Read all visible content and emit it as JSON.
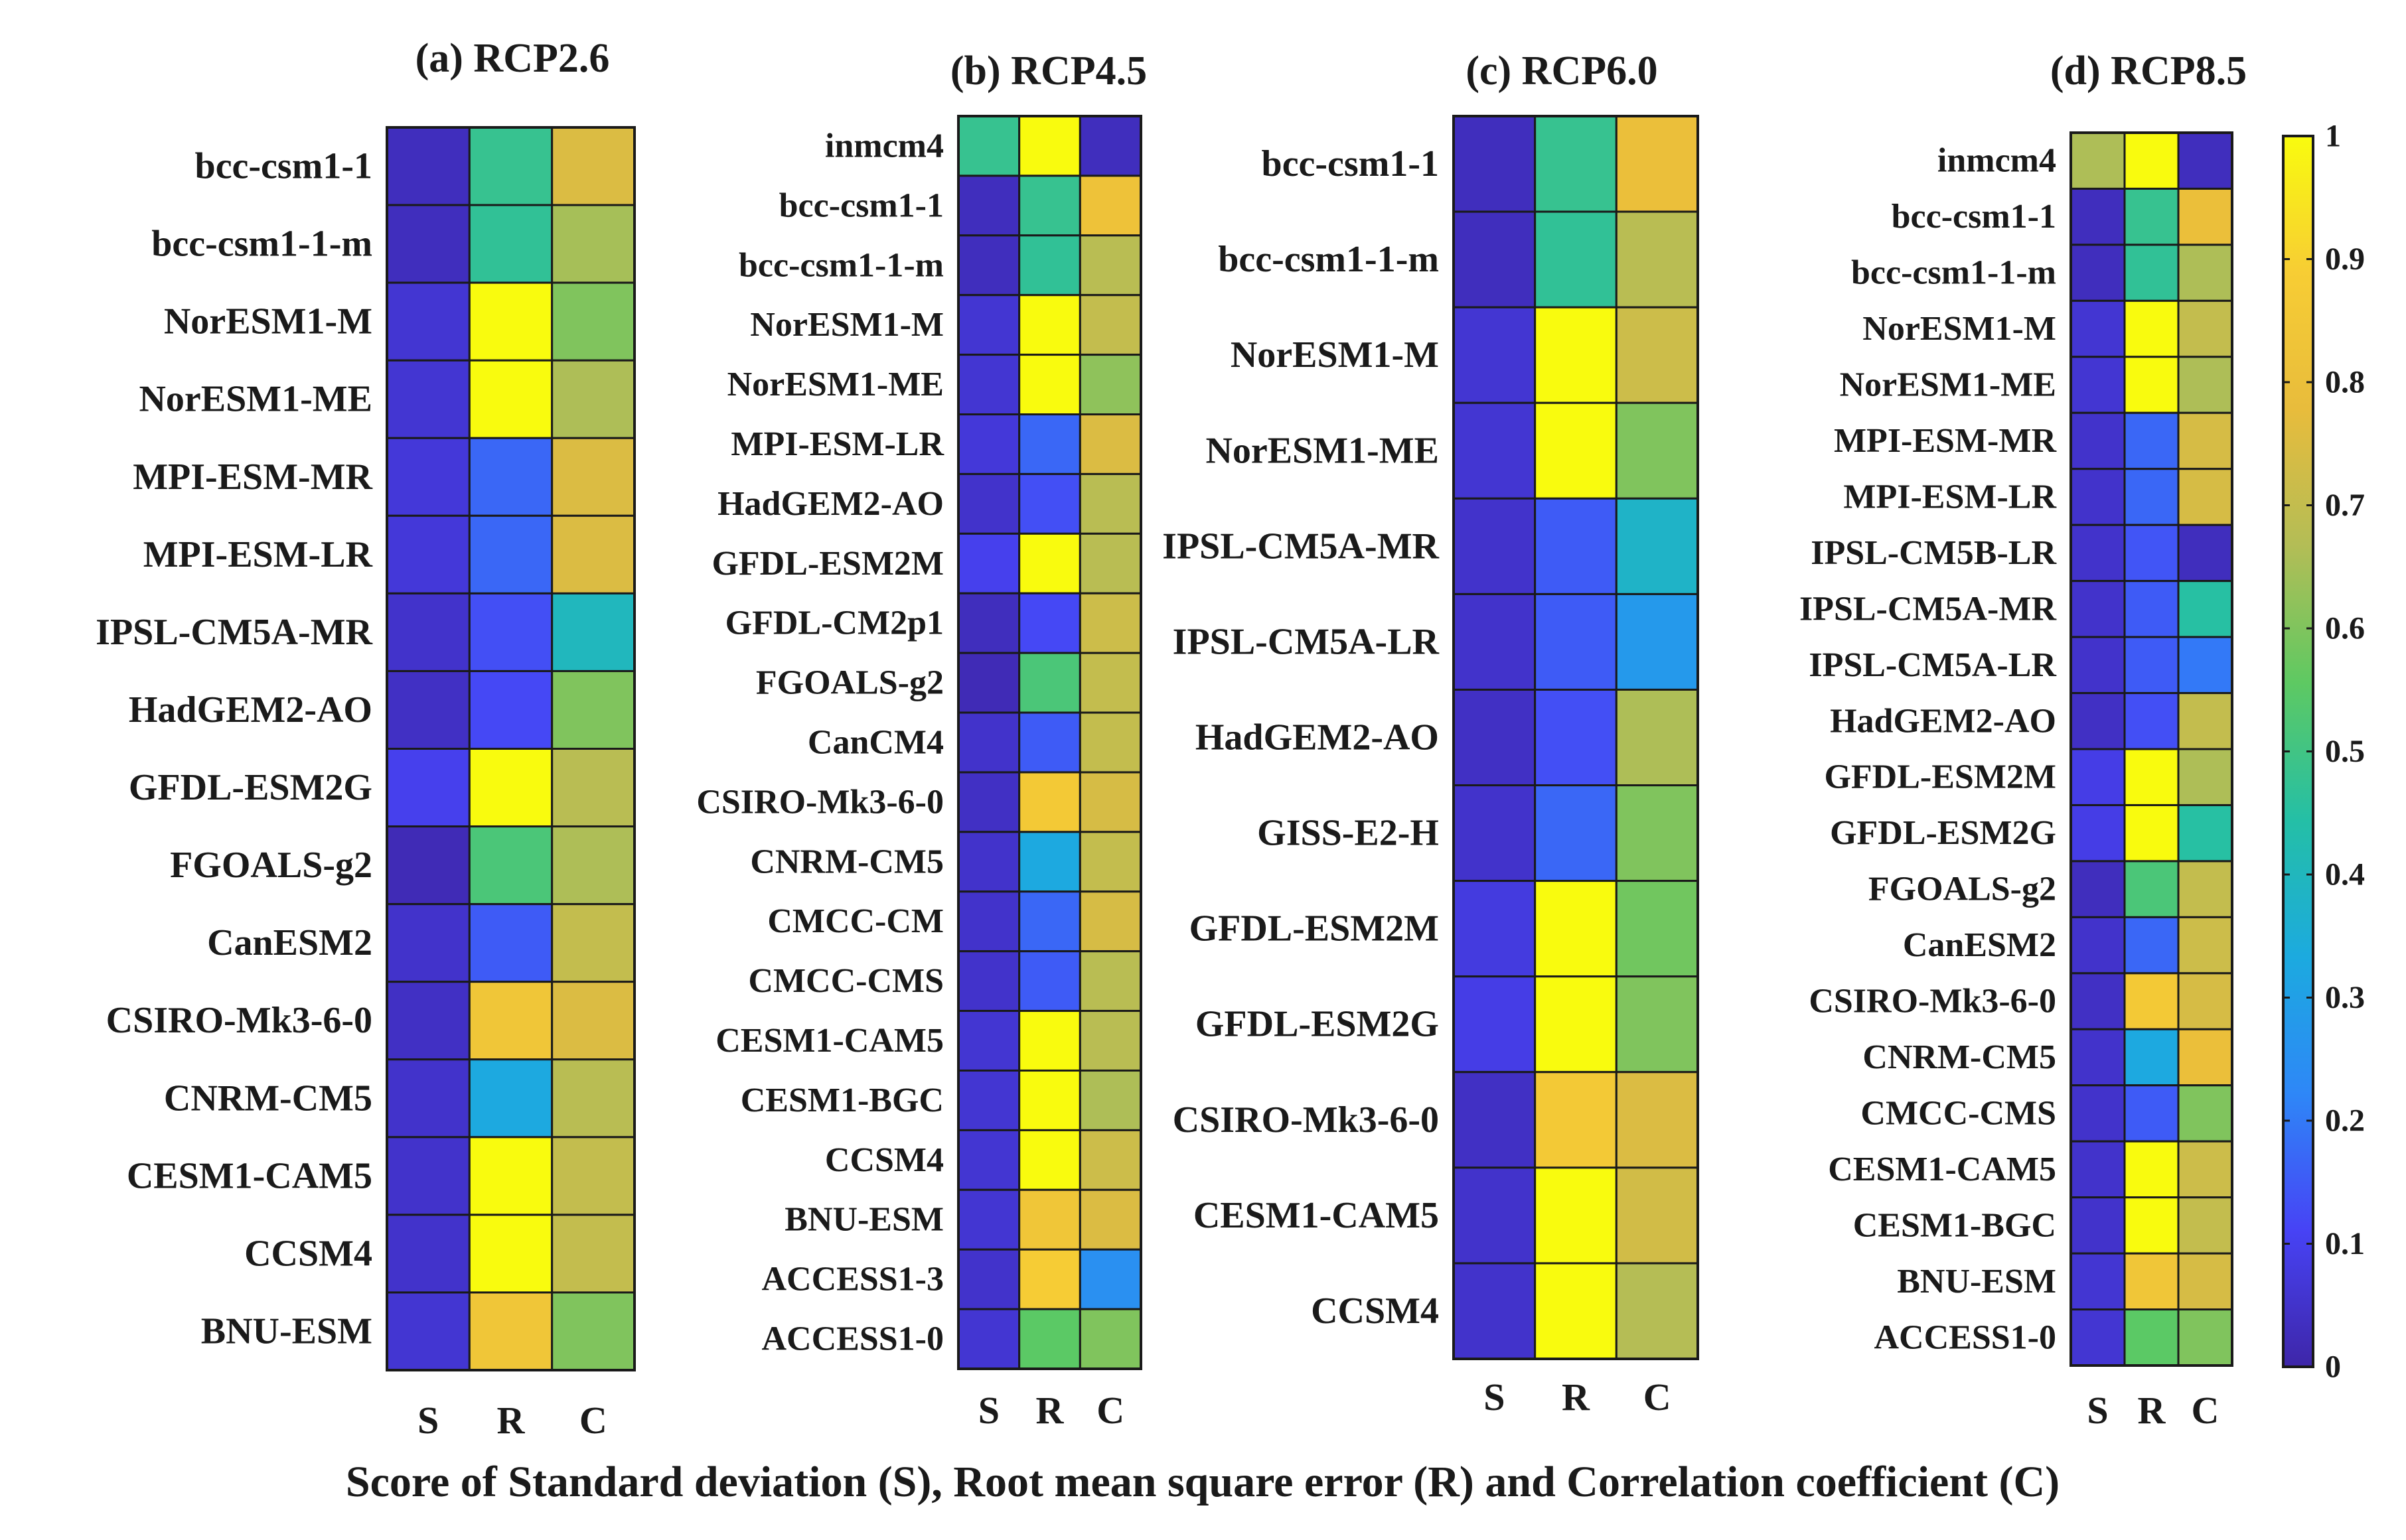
{
  "figure": {
    "xlabel": "Score of Standard deviation (S), Root mean square error (R) and Correlation coefficient (C)"
  },
  "colorbar": {
    "min": 0,
    "max": 1,
    "ticks": [
      0,
      0.1,
      0.2,
      0.3,
      0.4,
      0.5,
      0.6,
      0.7,
      0.8,
      0.9,
      1
    ],
    "tick_labels": [
      "0",
      "0.1",
      "0.2",
      "0.3",
      "0.4",
      "0.5",
      "0.6",
      "0.7",
      "0.8",
      "0.9",
      "1"
    ],
    "colormap": [
      "#3e26a8",
      "#4743f5",
      "#2e87f7",
      "#1caadf",
      "#24bfa6",
      "#5ec962",
      "#b3bd56",
      "#e8bc3c",
      "#f7cd34",
      "#f9fb0e"
    ]
  },
  "chart_data": [
    {
      "type": "heatmap",
      "title": "(a) RCP2.6",
      "columns": [
        "S",
        "R",
        "C"
      ],
      "rows": [
        "bcc-csm1-1",
        "bcc-csm1-1-m",
        "NorESM1-M",
        "NorESM1-ME",
        "MPI-ESM-MR",
        "MPI-ESM-LR",
        "IPSL-CM5A-MR",
        "HadGEM2-AO",
        "GFDL-ESM2G",
        "FGOALS-g2",
        "CanESM2",
        "CSIRO-Mk3-6-0",
        "CNRM-CM5",
        "CESM1-CAM5",
        "CCSM4",
        "BNU-ESM"
      ],
      "values": [
        [
          0.03,
          0.48,
          0.75
        ],
        [
          0.03,
          0.47,
          0.65
        ],
        [
          0.06,
          1.0,
          0.6
        ],
        [
          0.06,
          1.0,
          0.66
        ],
        [
          0.07,
          0.17,
          0.75
        ],
        [
          0.07,
          0.17,
          0.75
        ],
        [
          0.05,
          0.13,
          0.4
        ],
        [
          0.04,
          0.12,
          0.6
        ],
        [
          0.1,
          1.0,
          0.68
        ],
        [
          0.02,
          0.52,
          0.66
        ],
        [
          0.05,
          0.15,
          0.7
        ],
        [
          0.04,
          0.84,
          0.75
        ],
        [
          0.05,
          0.33,
          0.68
        ],
        [
          0.05,
          1.0,
          0.7
        ],
        [
          0.05,
          1.0,
          0.7
        ],
        [
          0.06,
          0.84,
          0.6
        ]
      ]
    },
    {
      "type": "heatmap",
      "title": "(b) RCP4.5",
      "columns": [
        "S",
        "R",
        "C"
      ],
      "rows": [
        "inmcm4",
        "bcc-csm1-1",
        "bcc-csm1-1-m",
        "NorESM1-M",
        "NorESM1-ME",
        "MPI-ESM-LR",
        "HadGEM2-AO",
        "GFDL-ESM2M",
        "GFDL-CM2p1",
        "FGOALS-g2",
        "CanCM4",
        "CSIRO-Mk3-6-0",
        "CNRM-CM5",
        "CMCC-CM",
        "CMCC-CMS",
        "CESM1-CAM5",
        "CESM1-BGC",
        "CCSM4",
        "BNU-ESM",
        "ACCESS1-3",
        "ACCESS1-0"
      ],
      "values": [
        [
          0.48,
          1.0,
          0.03
        ],
        [
          0.03,
          0.48,
          0.82
        ],
        [
          0.03,
          0.47,
          0.68
        ],
        [
          0.06,
          1.0,
          0.7
        ],
        [
          0.06,
          1.0,
          0.62
        ],
        [
          0.07,
          0.17,
          0.75
        ],
        [
          0.05,
          0.13,
          0.68
        ],
        [
          0.1,
          1.0,
          0.68
        ],
        [
          0.03,
          0.12,
          0.72
        ],
        [
          0.02,
          0.52,
          0.7
        ],
        [
          0.05,
          0.15,
          0.7
        ],
        [
          0.04,
          0.86,
          0.74
        ],
        [
          0.05,
          0.33,
          0.7
        ],
        [
          0.05,
          0.17,
          0.74
        ],
        [
          0.05,
          0.15,
          0.68
        ],
        [
          0.06,
          1.0,
          0.68
        ],
        [
          0.06,
          1.0,
          0.66
        ],
        [
          0.06,
          1.0,
          0.72
        ],
        [
          0.06,
          0.84,
          0.75
        ],
        [
          0.05,
          0.88,
          0.25
        ],
        [
          0.06,
          0.55,
          0.6
        ]
      ]
    },
    {
      "type": "heatmap",
      "title": "(c) RCP6.0",
      "columns": [
        "S",
        "R",
        "C"
      ],
      "rows": [
        "bcc-csm1-1",
        "bcc-csm1-1-m",
        "NorESM1-M",
        "NorESM1-ME",
        "IPSL-CM5A-MR",
        "IPSL-CM5A-LR",
        "HadGEM2-AO",
        "GISS-E2-H",
        "GFDL-ESM2M",
        "GFDL-ESM2G",
        "CSIRO-Mk3-6-0",
        "CESM1-CAM5",
        "CCSM4"
      ],
      "values": [
        [
          0.03,
          0.48,
          0.8
        ],
        [
          0.03,
          0.47,
          0.68
        ],
        [
          0.06,
          1.0,
          0.72
        ],
        [
          0.06,
          1.0,
          0.6
        ],
        [
          0.05,
          0.15,
          0.38
        ],
        [
          0.05,
          0.15,
          0.28
        ],
        [
          0.04,
          0.13,
          0.66
        ],
        [
          0.05,
          0.17,
          0.6
        ],
        [
          0.08,
          1.0,
          0.58
        ],
        [
          0.09,
          1.0,
          0.6
        ],
        [
          0.04,
          0.86,
          0.75
        ],
        [
          0.05,
          1.0,
          0.73
        ],
        [
          0.05,
          1.0,
          0.67
        ]
      ]
    },
    {
      "type": "heatmap",
      "title": "(d) RCP8.5",
      "columns": [
        "S",
        "R",
        "C"
      ],
      "rows": [
        "inmcm4",
        "bcc-csm1-1",
        "bcc-csm1-1-m",
        "NorESM1-M",
        "NorESM1-ME",
        "MPI-ESM-MR",
        "MPI-ESM-LR",
        "IPSL-CM5B-LR",
        "IPSL-CM5A-MR",
        "IPSL-CM5A-LR",
        "HadGEM2-AO",
        "GFDL-ESM2M",
        "GFDL-ESM2G",
        "FGOALS-g2",
        "CanESM2",
        "CSIRO-Mk3-6-0",
        "CNRM-CM5",
        "CMCC-CMS",
        "CESM1-CAM5",
        "CESM1-BGC",
        "BNU-ESM",
        "ACCESS1-0"
      ],
      "values": [
        [
          0.66,
          1.0,
          0.03
        ],
        [
          0.03,
          0.48,
          0.8
        ],
        [
          0.03,
          0.47,
          0.66
        ],
        [
          0.06,
          1.0,
          0.7
        ],
        [
          0.06,
          1.0,
          0.66
        ],
        [
          0.05,
          0.17,
          0.74
        ],
        [
          0.05,
          0.17,
          0.74
        ],
        [
          0.05,
          0.14,
          0.03
        ],
        [
          0.05,
          0.15,
          0.45
        ],
        [
          0.05,
          0.15,
          0.2
        ],
        [
          0.04,
          0.13,
          0.7
        ],
        [
          0.09,
          1.0,
          0.66
        ],
        [
          0.09,
          1.0,
          0.45
        ],
        [
          0.03,
          0.52,
          0.7
        ],
        [
          0.05,
          0.17,
          0.72
        ],
        [
          0.04,
          0.86,
          0.74
        ],
        [
          0.05,
          0.33,
          0.8
        ],
        [
          0.05,
          0.15,
          0.6
        ],
        [
          0.05,
          1.0,
          0.72
        ],
        [
          0.05,
          1.0,
          0.7
        ],
        [
          0.06,
          0.84,
          0.74
        ],
        [
          0.06,
          0.55,
          0.6
        ]
      ]
    }
  ]
}
